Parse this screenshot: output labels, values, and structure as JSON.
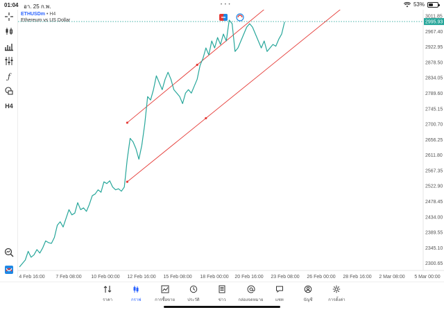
{
  "status_bar": {
    "time": "01:04",
    "date": "อา. 25 ก.พ.",
    "battery": "53%",
    "battery_level": 0.53
  },
  "toolbar_icons": [
    "crosshair-icon",
    "candles-icon",
    "bars-icon",
    "indicators-icon",
    "function-icon",
    "shapes-icon",
    "timeframe-h4",
    "zoom-icon",
    "logo-icon"
  ],
  "header": {
    "symbol": "ETHUSDm",
    "separator": " • ",
    "timeframe": "H4",
    "description": "Ethereum vs US Dollar"
  },
  "chart_data": {
    "type": "line",
    "color": "#26a69a",
    "channel_color": "#e53935",
    "current_price_label": "2995.93",
    "ylim": [
      2280,
      3030
    ],
    "y_ticks": [
      "3011.85",
      "2967.40",
      "2922.95",
      "2878.50",
      "2834.05",
      "2789.60",
      "2745.15",
      "2700.70",
      "2656.25",
      "2611.80",
      "2567.35",
      "2522.90",
      "2478.45",
      "2434.00",
      "2389.55",
      "2345.10",
      "2300.65"
    ],
    "x_ticks": [
      "4 Feb 16:00",
      "7 Feb 08:00",
      "10 Feb 00:00",
      "12 Feb 16:00",
      "15 Feb 08:00",
      "18 Feb 00:00",
      "20 Feb 16:00",
      "23 Feb 08:00",
      "26 Feb 00:00",
      "28 Feb 16:00",
      "2 Mar 08:00",
      "5 Mar 00:00"
    ],
    "series_close": [
      2290,
      2300,
      2310,
      2335,
      2318,
      2325,
      2340,
      2330,
      2345,
      2365,
      2360,
      2358,
      2375,
      2410,
      2420,
      2405,
      2430,
      2455,
      2440,
      2445,
      2475,
      2455,
      2460,
      2450,
      2470,
      2495,
      2500,
      2512,
      2505,
      2535,
      2530,
      2538,
      2520,
      2512,
      2515,
      2508,
      2520,
      2600,
      2660,
      2650,
      2630,
      2600,
      2640,
      2700,
      2780,
      2770,
      2800,
      2840,
      2820,
      2800,
      2830,
      2850,
      2830,
      2800,
      2790,
      2780,
      2760,
      2790,
      2800,
      2790,
      2810,
      2830,
      2870,
      2890,
      2920,
      2900,
      2940,
      2920,
      2950,
      2930,
      2960,
      2940,
      3000,
      2990,
      2910,
      2920,
      2940,
      2960,
      2980,
      2990,
      2980,
      2960,
      2940,
      2920,
      2940,
      2910,
      2920,
      2930,
      2925,
      2945,
      2960,
      2995
    ],
    "channel_upper_x_index": [
      37,
      125
    ],
    "channel_upper_y": [
      2705,
      3315
    ],
    "channel_lower_x_index": [
      37,
      113
    ],
    "channel_lower_y": [
      2535,
      3050
    ]
  },
  "bottom_nav": [
    {
      "label": "ราคา",
      "icon": "quotes-icon",
      "active": false
    },
    {
      "label": "กราฟ",
      "icon": "chart-icon",
      "active": true
    },
    {
      "label": "การซื้อขาย",
      "icon": "trade-icon",
      "active": false
    },
    {
      "label": "ประวัติ",
      "icon": "history-icon",
      "active": false
    },
    {
      "label": "ข่าว",
      "icon": "news-icon",
      "active": false
    },
    {
      "label": "กล่องจดหมาย",
      "icon": "mailbox-icon",
      "active": false
    },
    {
      "label": "แชท",
      "icon": "chat-icon",
      "active": false
    },
    {
      "label": "บัญชี",
      "icon": "account-icon",
      "active": false
    },
    {
      "label": "การตั้งค่า",
      "icon": "settings-icon",
      "active": false
    }
  ]
}
